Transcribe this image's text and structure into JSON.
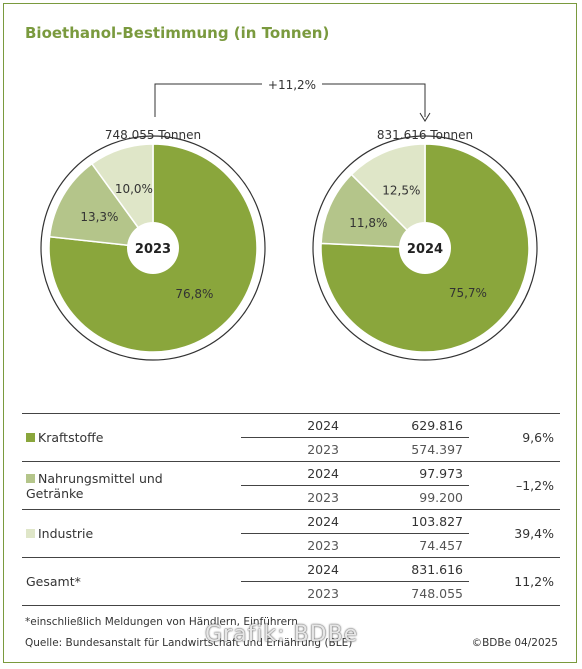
{
  "title": "Bioethanol-Bestimmung (in Tonnen)",
  "change_label": "+11,2%",
  "colors": {
    "kraftstoffe": "#8aa63c",
    "nahrung": "#b4c58a",
    "industrie": "#dfe6c8",
    "accent": "#7a9a3e"
  },
  "chart_data": [
    {
      "type": "pie",
      "center_label": "2023",
      "total_label": "748.055 Tonnen",
      "slices": [
        {
          "name": "Kraftstoffe",
          "value": 76.8,
          "label": "76,8%"
        },
        {
          "name": "Nahrungsmittel und Getränke",
          "value": 13.3,
          "label": "13,3%"
        },
        {
          "name": "Industrie",
          "value": 10.0,
          "label": "10,0%"
        }
      ]
    },
    {
      "type": "pie",
      "center_label": "2024",
      "total_label": "831.616 Tonnen",
      "slices": [
        {
          "name": "Kraftstoffe",
          "value": 75.7,
          "label": "75,7%"
        },
        {
          "name": "Nahrungsmittel und Getränke",
          "value": 11.8,
          "label": "11,8%"
        },
        {
          "name": "Industrie",
          "value": 12.5,
          "label": "12,5%"
        }
      ]
    }
  ],
  "table": {
    "rows": [
      {
        "category": "Kraftstoffe",
        "category_line2": "",
        "swatch": "kraftstoffe",
        "y1": "2024",
        "v1": "629.816",
        "y2": "2023",
        "v2": "574.397",
        "change": "9,6%"
      },
      {
        "category": "Nahrungsmittel und",
        "category_line2": "Getränke",
        "swatch": "nahrung",
        "y1": "2024",
        "v1": "97.973",
        "y2": "2023",
        "v2": "99.200",
        "change": "–1,2%"
      },
      {
        "category": "Industrie",
        "category_line2": "",
        "swatch": "industrie",
        "y1": "2024",
        "v1": "103.827",
        "y2": "2023",
        "v2": "74.457",
        "change": "39,4%"
      },
      {
        "category": "Gesamt*",
        "category_line2": "",
        "swatch": "",
        "y1": "2024",
        "v1": "831.616",
        "y2": "2023",
        "v2": "748.055",
        "change": "11,2%"
      }
    ]
  },
  "footnote": "*einschließlich Meldungen von Händlern, Einführern",
  "source": "Quelle: Bundesanstalt für Landwirtschaft und Ernährung (BLE)",
  "copyright": "©BDBe 04/2025",
  "watermark": "Grafik: BDBe"
}
